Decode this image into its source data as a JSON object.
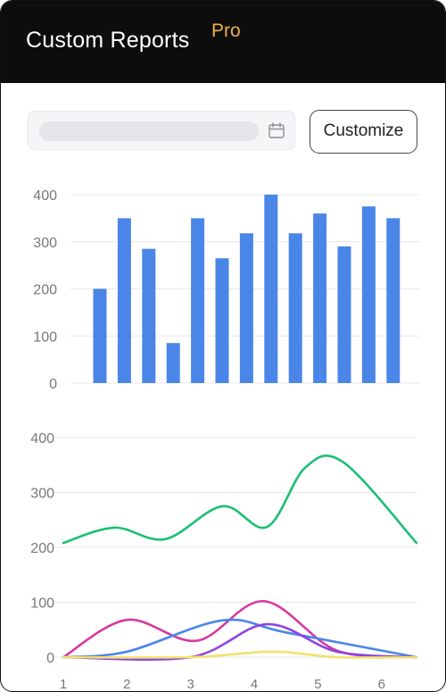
{
  "header": {
    "title": "Custom Reports",
    "badge": "Pro"
  },
  "colors": {
    "header_bg": "#0d0d0d",
    "badge": "#f0b24a",
    "bar": "#4a86e8",
    "grid": "#e8e8e8",
    "tick_label": "#777777"
  },
  "toolbar": {
    "date_value": "",
    "calendar_icon": "calendar-icon",
    "customize_label": "Customize"
  },
  "chart_data": [
    {
      "type": "bar",
      "ylim": [
        0,
        400
      ],
      "yticks": [
        "0",
        "100",
        "200",
        "300",
        "400"
      ],
      "grid": true,
      "x": [
        1,
        2,
        3,
        4,
        5,
        6,
        7,
        8,
        9,
        10,
        11,
        12,
        13
      ],
      "values": [
        200,
        350,
        285,
        85,
        350,
        265,
        318,
        400,
        318,
        360,
        290,
        375,
        350
      ]
    },
    {
      "type": "line",
      "ylim": [
        0,
        400
      ],
      "yticks": [
        "0",
        "100",
        "200",
        "300",
        "400"
      ],
      "xticks": [
        "1",
        "2",
        "3",
        "4",
        "5",
        "6"
      ],
      "xlim": [
        1,
        6.55
      ],
      "grid": true,
      "series": [
        {
          "color": "#1dbf73",
          "points": [
            [
              1,
              208
            ],
            [
              1.8,
              236
            ],
            [
              2.6,
              215
            ],
            [
              3.5,
              275
            ],
            [
              4.2,
              237
            ],
            [
              4.8,
              345
            ],
            [
              5.4,
              355
            ],
            [
              6.55,
              208
            ]
          ]
        },
        {
          "color": "#d63aa0",
          "points": [
            [
              1,
              0
            ],
            [
              2,
              68
            ],
            [
              3.1,
              30
            ],
            [
              4.15,
              102
            ],
            [
              5.3,
              12
            ],
            [
              6.55,
              0
            ]
          ]
        },
        {
          "color": "#4a86e8",
          "points": [
            [
              1,
              0
            ],
            [
              2,
              10
            ],
            [
              3.5,
              67
            ],
            [
              4.5,
              45
            ],
            [
              6.55,
              0
            ]
          ]
        },
        {
          "color": "#8e44e0",
          "points": [
            [
              1,
              0
            ],
            [
              3,
              0
            ],
            [
              4.2,
              60
            ],
            [
              5.3,
              10
            ],
            [
              6.55,
              0
            ]
          ]
        },
        {
          "color": "#f2e26a",
          "points": [
            [
              1,
              0
            ],
            [
              3,
              0
            ],
            [
              4.3,
              10
            ],
            [
              5.3,
              0
            ],
            [
              6.55,
              0
            ]
          ]
        }
      ]
    }
  ]
}
